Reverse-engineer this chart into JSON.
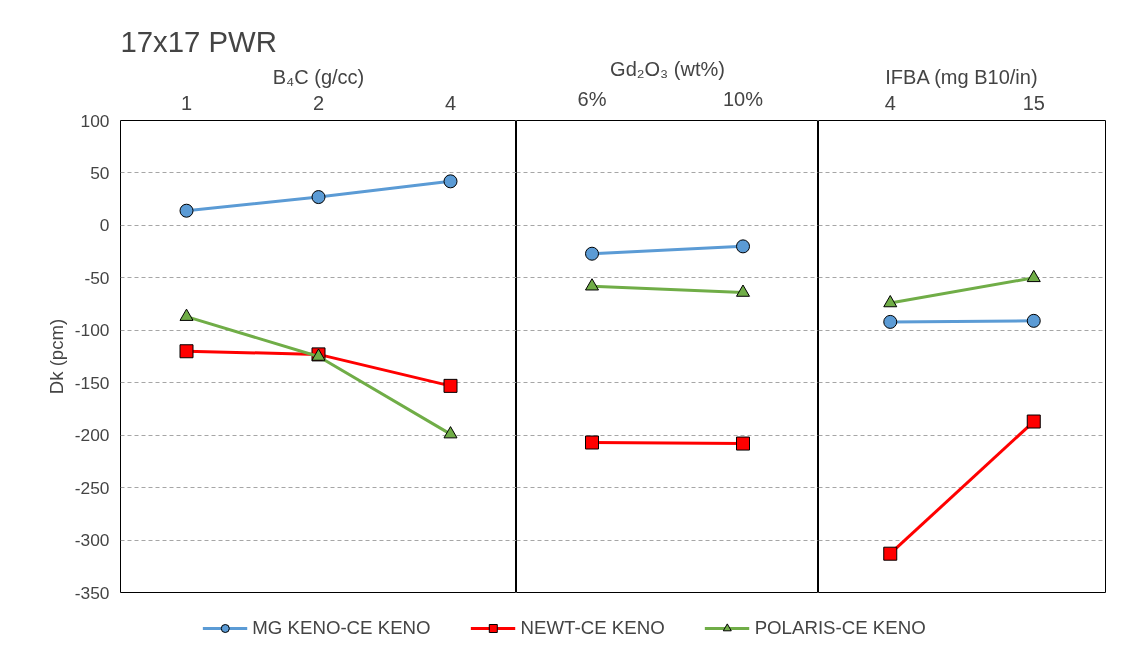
{
  "chart_data": [
    {
      "type": "line",
      "title": "17x17 PWR",
      "xlabel": "B₄C (g/cc)",
      "ylabel": "Dk (pcm)",
      "categories": [
        "1",
        "2",
        "4"
      ],
      "ylim": [
        -350,
        100
      ],
      "yticks": [
        -350,
        -300,
        -250,
        -200,
        -150,
        -100,
        -50,
        0,
        50,
        100
      ],
      "grid": "y",
      "legend": "bottom",
      "series": [
        {
          "name": "MG KENO-CE KENO",
          "color": "#5b9bd5",
          "marker": "circle",
          "values": [
            14,
            27,
            42
          ]
        },
        {
          "name": "NEWT-CE KENO",
          "color": "#ff0000",
          "marker": "square",
          "values": [
            -120,
            -123,
            -153
          ]
        },
        {
          "name": "POLARIS-CE KENO",
          "color": "#70ad47",
          "marker": "triangle",
          "values": [
            -87,
            -125,
            -199
          ]
        }
      ]
    },
    {
      "type": "line",
      "xlabel": "Gd₂O₃ (wt%)",
      "categories": [
        "6%",
        "10%"
      ],
      "ylim": [
        -350,
        100
      ],
      "yticks": [
        -350,
        -300,
        -250,
        -200,
        -150,
        -100,
        -50,
        0,
        50,
        100
      ],
      "grid": "y",
      "tick_labels": "x",
      "series": [
        {
          "color": "#5b9bd5",
          "marker": "circle",
          "values": [
            -27,
            -20
          ]
        },
        {
          "color": "#ff0000",
          "marker": "square",
          "values": [
            -207,
            -208
          ]
        },
        {
          "color": "#70ad47",
          "marker": "triangle",
          "values": [
            -58,
            -64
          ]
        }
      ]
    },
    {
      "type": "line",
      "xlabel": "IFBA (mg B10/in)",
      "categories": [
        "4",
        "15"
      ],
      "ylim": [
        -350,
        100
      ],
      "yticks": [
        -350,
        -300,
        -250,
        -200,
        -150,
        -100,
        -50,
        0,
        50,
        100
      ],
      "grid": "y",
      "tick_labels": "x",
      "series": [
        {
          "color": "#5b9bd5",
          "marker": "circle",
          "values": [
            -92,
            -91
          ]
        },
        {
          "color": "#ff0000",
          "marker": "square",
          "values": [
            -313,
            -187
          ]
        },
        {
          "color": "#70ad47",
          "marker": "triangle",
          "values": [
            -74,
            -50
          ]
        }
      ]
    }
  ]
}
